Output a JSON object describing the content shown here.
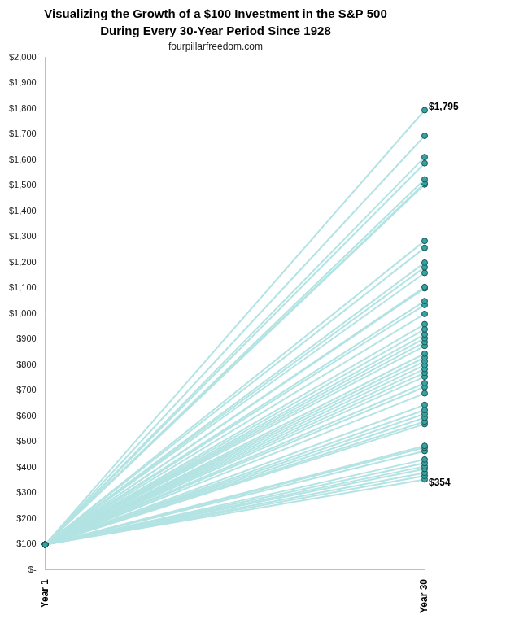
{
  "chart_data": {
    "type": "line",
    "title": [
      "Visualizing the Growth of a $100 Investment in the S&P 500",
      "During Every 30-Year Period Since 1928"
    ],
    "subtitle": "fourpillarfreedom.com",
    "categories": [
      "Year 1",
      "Year 30"
    ],
    "color": "#b3e3e3",
    "marker": "circle",
    "grid": false,
    "ylim": [
      0,
      2000
    ],
    "yticks": [
      {
        "value": 0,
        "label": "$-"
      },
      {
        "value": 100,
        "label": "$100"
      },
      {
        "value": 200,
        "label": "$200"
      },
      {
        "value": 300,
        "label": "$300"
      },
      {
        "value": 400,
        "label": "$400"
      },
      {
        "value": 500,
        "label": "$500"
      },
      {
        "value": 600,
        "label": "$600"
      },
      {
        "value": 700,
        "label": "$700"
      },
      {
        "value": 800,
        "label": "$800"
      },
      {
        "value": 900,
        "label": "$900"
      },
      {
        "value": 1000,
        "label": "$1,000"
      },
      {
        "value": 1100,
        "label": "$1,100"
      },
      {
        "value": 1200,
        "label": "$1,200"
      },
      {
        "value": 1300,
        "label": "$1,300"
      },
      {
        "value": 1400,
        "label": "$1,400"
      },
      {
        "value": 1500,
        "label": "$1,500"
      },
      {
        "value": 1600,
        "label": "$1,600"
      },
      {
        "value": 1700,
        "label": "$1,700"
      },
      {
        "value": 1800,
        "label": "$1,800"
      },
      {
        "value": 1900,
        "label": "$1,900"
      },
      {
        "value": 2000,
        "label": "$2,000"
      }
    ],
    "annotations": [
      {
        "text": "$1,795",
        "x": "Year 30",
        "y": 1795
      },
      {
        "text": "$354",
        "x": "Year 30",
        "y": 354
      }
    ],
    "series": [
      {
        "values": [
          100,
          1795
        ]
      },
      {
        "values": [
          100,
          1695
        ]
      },
      {
        "values": [
          100,
          1612
        ]
      },
      {
        "values": [
          100,
          1588
        ]
      },
      {
        "values": [
          100,
          1525
        ]
      },
      {
        "values": [
          100,
          1510
        ]
      },
      {
        "values": [
          100,
          1505
        ]
      },
      {
        "values": [
          100,
          1285
        ]
      },
      {
        "values": [
          100,
          1258
        ]
      },
      {
        "values": [
          100,
          1200
        ]
      },
      {
        "values": [
          100,
          1182
        ]
      },
      {
        "values": [
          100,
          1160
        ]
      },
      {
        "values": [
          100,
          1105
        ]
      },
      {
        "values": [
          100,
          1100
        ]
      },
      {
        "values": [
          100,
          1050
        ]
      },
      {
        "values": [
          100,
          1035
        ]
      },
      {
        "values": [
          100,
          1000
        ]
      },
      {
        "values": [
          100,
          960
        ]
      },
      {
        "values": [
          100,
          940
        ]
      },
      {
        "values": [
          100,
          920
        ]
      },
      {
        "values": [
          100,
          905
        ]
      },
      {
        "values": [
          100,
          890
        ]
      },
      {
        "values": [
          100,
          875
        ]
      },
      {
        "values": [
          100,
          845
        ]
      },
      {
        "values": [
          100,
          830
        ]
      },
      {
        "values": [
          100,
          815
        ]
      },
      {
        "values": [
          100,
          800
        ]
      },
      {
        "values": [
          100,
          785
        ]
      },
      {
        "values": [
          100,
          770
        ]
      },
      {
        "values": [
          100,
          755
        ]
      },
      {
        "values": [
          100,
          730
        ]
      },
      {
        "values": [
          100,
          715
        ]
      },
      {
        "values": [
          100,
          690
        ]
      },
      {
        "values": [
          100,
          645
        ]
      },
      {
        "values": [
          100,
          625
        ]
      },
      {
        "values": [
          100,
          610
        ]
      },
      {
        "values": [
          100,
          595
        ]
      },
      {
        "values": [
          100,
          580
        ]
      },
      {
        "values": [
          100,
          570
        ]
      },
      {
        "values": [
          100,
          485
        ]
      },
      {
        "values": [
          100,
          478
        ]
      },
      {
        "values": [
          100,
          465
        ]
      },
      {
        "values": [
          100,
          432
        ]
      },
      {
        "values": [
          100,
          418
        ]
      },
      {
        "values": [
          100,
          405
        ]
      },
      {
        "values": [
          100,
          395
        ]
      },
      {
        "values": [
          100,
          380
        ]
      },
      {
        "values": [
          100,
          368
        ]
      },
      {
        "values": [
          100,
          354
        ]
      }
    ]
  }
}
